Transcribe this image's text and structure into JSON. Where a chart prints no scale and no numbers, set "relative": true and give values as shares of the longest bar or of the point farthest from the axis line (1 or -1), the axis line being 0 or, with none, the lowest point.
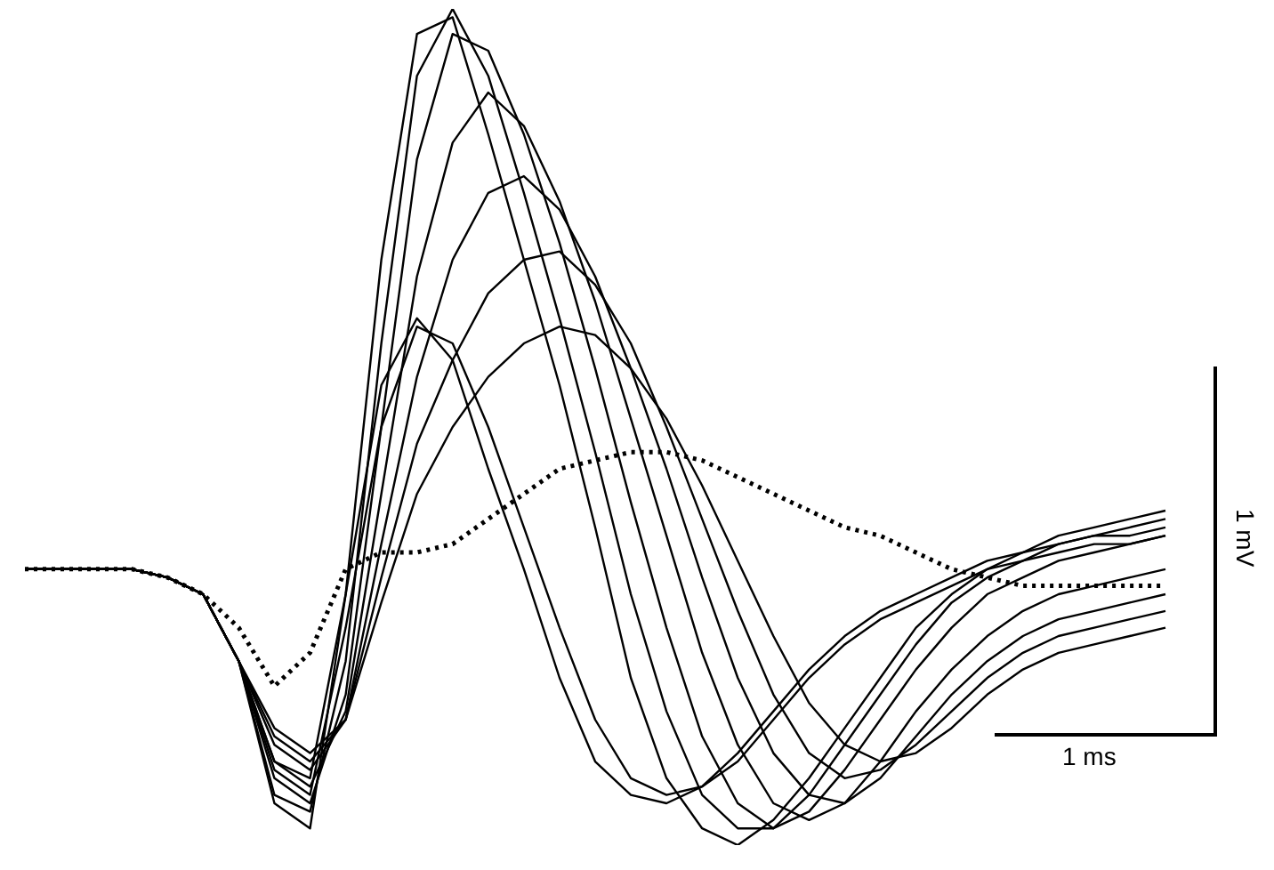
{
  "chart_data": {
    "type": "line",
    "relative": true,
    "legend": false,
    "marker": "none",
    "line_style": "solid",
    "categories": [
      null,
      null,
      null,
      null,
      null,
      null,
      null,
      null,
      null,
      null,
      null,
      null,
      null,
      null,
      null,
      null,
      null,
      null,
      null,
      null,
      null,
      null,
      null,
      null,
      null,
      null,
      null,
      null,
      null,
      null,
      null,
      null,
      null
    ],
    "annotations": [
      "1 mV",
      "1 ms"
    ],
    "series": [
      {
        "color": "#000000",
        "values": [
          0.33,
          0.33,
          0.33,
          0.33,
          0.32,
          0.3,
          0.22,
          0.05,
          0.02,
          0.3,
          0.7,
          0.97,
          0.99,
          0.85,
          0.7,
          0.55,
          0.38,
          0.2,
          0.08,
          0.02,
          0.0,
          0.03,
          0.08,
          0.14,
          0.2,
          0.26,
          0.3,
          0.33,
          0.35,
          0.37,
          0.38,
          0.39,
          0.4
        ]
      },
      {
        "color": "#000000",
        "values": [
          0.33,
          0.33,
          0.33,
          0.33,
          0.32,
          0.3,
          0.22,
          0.06,
          0.04,
          0.22,
          0.6,
          0.92,
          1.0,
          0.92,
          0.78,
          0.63,
          0.47,
          0.3,
          0.16,
          0.06,
          0.02,
          0.02,
          0.06,
          0.12,
          0.18,
          0.24,
          0.29,
          0.32,
          0.34,
          0.36,
          0.37,
          0.38,
          0.39
        ]
      },
      {
        "color": "#000000",
        "values": [
          0.33,
          0.33,
          0.33,
          0.33,
          0.32,
          0.3,
          0.22,
          0.08,
          0.05,
          0.18,
          0.5,
          0.82,
          0.97,
          0.95,
          0.85,
          0.72,
          0.57,
          0.41,
          0.26,
          0.13,
          0.05,
          0.02,
          0.04,
          0.09,
          0.15,
          0.21,
          0.26,
          0.3,
          0.32,
          0.34,
          0.35,
          0.36,
          0.37
        ]
      },
      {
        "color": "#000000",
        "values": [
          0.33,
          0.33,
          0.33,
          0.33,
          0.32,
          0.3,
          0.22,
          0.1,
          0.07,
          0.16,
          0.42,
          0.68,
          0.84,
          0.9,
          0.86,
          0.77,
          0.65,
          0.51,
          0.37,
          0.23,
          0.12,
          0.05,
          0.03,
          0.05,
          0.1,
          0.16,
          0.21,
          0.25,
          0.28,
          0.3,
          0.31,
          0.32,
          0.33
        ]
      },
      {
        "color": "#000000",
        "values": [
          0.33,
          0.33,
          0.33,
          0.33,
          0.32,
          0.3,
          0.22,
          0.12,
          0.09,
          0.15,
          0.36,
          0.56,
          0.7,
          0.78,
          0.8,
          0.76,
          0.68,
          0.57,
          0.45,
          0.32,
          0.2,
          0.11,
          0.06,
          0.05,
          0.08,
          0.13,
          0.18,
          0.22,
          0.25,
          0.27,
          0.28,
          0.29,
          0.3
        ]
      },
      {
        "color": "#000000",
        "values": [
          0.33,
          0.33,
          0.33,
          0.33,
          0.32,
          0.3,
          0.22,
          0.13,
          0.1,
          0.15,
          0.32,
          0.48,
          0.58,
          0.66,
          0.7,
          0.71,
          0.67,
          0.6,
          0.5,
          0.39,
          0.28,
          0.18,
          0.11,
          0.08,
          0.09,
          0.12,
          0.16,
          0.2,
          0.23,
          0.25,
          0.26,
          0.27,
          0.28
        ]
      },
      {
        "color": "#000000",
        "values": [
          0.33,
          0.33,
          0.33,
          0.33,
          0.32,
          0.3,
          0.22,
          0.14,
          0.11,
          0.15,
          0.29,
          0.42,
          0.5,
          0.56,
          0.6,
          0.62,
          0.61,
          0.57,
          0.51,
          0.43,
          0.34,
          0.25,
          0.17,
          0.12,
          0.1,
          0.11,
          0.14,
          0.18,
          0.21,
          0.23,
          0.24,
          0.25,
          0.26
        ]
      },
      {
        "color": "#000000",
        "values": [
          0.33,
          0.33,
          0.33,
          0.33,
          0.32,
          0.3,
          0.22,
          0.1,
          0.08,
          0.3,
          0.55,
          0.63,
          0.58,
          0.45,
          0.33,
          0.2,
          0.1,
          0.06,
          0.05,
          0.07,
          0.11,
          0.16,
          0.21,
          0.25,
          0.28,
          0.3,
          0.32,
          0.34,
          0.35,
          0.36,
          0.37,
          0.37,
          0.38
        ]
      },
      {
        "color": "#000000",
        "values": [
          0.33,
          0.33,
          0.33,
          0.33,
          0.32,
          0.3,
          0.22,
          0.09,
          0.06,
          0.26,
          0.5,
          0.62,
          0.6,
          0.5,
          0.38,
          0.26,
          0.15,
          0.08,
          0.06,
          0.07,
          0.1,
          0.15,
          0.2,
          0.24,
          0.27,
          0.29,
          0.31,
          0.33,
          0.34,
          0.35,
          0.36,
          0.36,
          0.37
        ]
      },
      {
        "color": "#000000",
        "line_style": "dotted",
        "values": [
          0.33,
          0.33,
          0.33,
          0.33,
          0.32,
          0.3,
          0.26,
          0.19,
          0.23,
          0.33,
          0.35,
          0.35,
          0.36,
          0.39,
          0.42,
          0.45,
          0.46,
          0.47,
          0.47,
          0.46,
          0.44,
          0.42,
          0.4,
          0.38,
          0.37,
          0.35,
          0.33,
          0.32,
          0.31,
          0.31,
          0.31,
          0.31,
          0.31
        ]
      }
    ]
  }
}
